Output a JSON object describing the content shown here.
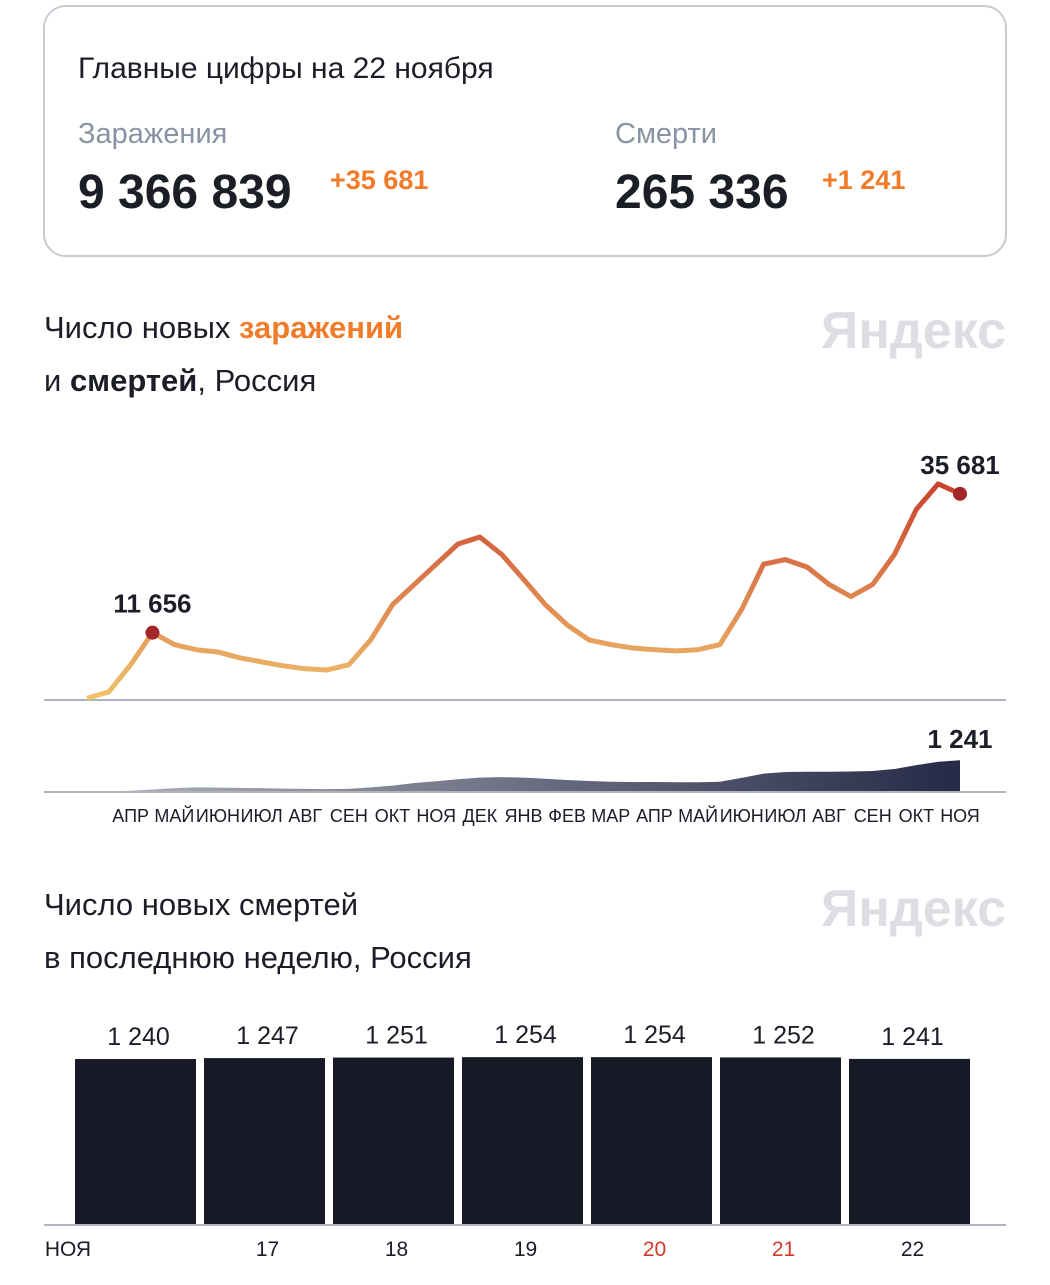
{
  "summary": {
    "title": "Главные цифры на 22 ноября",
    "items": [
      {
        "label": "Заражения",
        "value": "9 366 839",
        "delta": "+35 681"
      },
      {
        "label": "Смерти",
        "value": "265 336",
        "delta": "+1 241"
      }
    ]
  },
  "chart_data": [
    {
      "type": "line",
      "watermark": "Яндекс",
      "title_lines": [
        [
          "Число новых ",
          "заражений"
        ],
        [
          "и ",
          "смертей",
          ", Россия"
        ]
      ],
      "categories": [
        null,
        null,
        "АПР",
        null,
        "МАЙ",
        null,
        "ИЮН",
        null,
        "ИЮЛ",
        null,
        "АВГ",
        null,
        "СЕН",
        null,
        "ОКТ",
        null,
        "НОЯ",
        null,
        "ДЕК",
        null,
        "ЯНВ",
        null,
        "ФЕВ",
        null,
        "МАР",
        null,
        "АПР",
        null,
        "МАЙ",
        null,
        "ИЮН",
        null,
        "ИЮЛ",
        null,
        "АВГ",
        null,
        "СЕН",
        null,
        "ОКТ",
        null,
        "НОЯ"
      ],
      "ylim": [
        0,
        45000
      ],
      "y2lim": [
        0,
        3400
      ],
      "series": [
        {
          "color": [
            "#f0c36e",
            "#c73a2a"
          ],
          "marker_color": "#a3262a",
          "values": [
            300,
            1400,
            6100,
            11656,
            9600,
            8700,
            8300,
            7300,
            6600,
            5900,
            5400,
            5200,
            6100,
            10400,
            16500,
            20000,
            23500,
            27000,
            28200,
            25200,
            20900,
            16500,
            13000,
            10400,
            9600,
            9000,
            8700,
            8500,
            8700,
            9600,
            15700,
            23500,
            24300,
            23000,
            20000,
            17900,
            20000,
            25200,
            33000,
            37400,
            35681
          ],
          "value_labels": [
            null,
            null,
            null,
            "11 656",
            null,
            null,
            null,
            null,
            null,
            null,
            null,
            null,
            null,
            null,
            null,
            null,
            null,
            null,
            null,
            null,
            null,
            null,
            null,
            null,
            null,
            null,
            null,
            null,
            null,
            null,
            null,
            null,
            null,
            null,
            null,
            null,
            null,
            null,
            null,
            null,
            "35 681"
          ]
        },
        {
          "axis": "y2",
          "color": "#262a47",
          "values": [
            5,
            20,
            50,
            100,
            150,
            180,
            170,
            160,
            150,
            130,
            120,
            110,
            120,
            180,
            250,
            350,
            420,
            500,
            560,
            580,
            560,
            520,
            470,
            430,
            400,
            390,
            390,
            380,
            380,
            400,
            550,
            720,
            780,
            790,
            790,
            800,
            820,
            900,
            1050,
            1180,
            1241
          ],
          "value_labels": [
            null,
            null,
            null,
            null,
            null,
            null,
            null,
            null,
            null,
            null,
            null,
            null,
            null,
            null,
            null,
            null,
            null,
            null,
            null,
            null,
            null,
            null,
            null,
            null,
            null,
            null,
            null,
            null,
            null,
            null,
            null,
            null,
            null,
            null,
            null,
            null,
            null,
            null,
            null,
            null,
            "1 241"
          ]
        }
      ]
    },
    {
      "type": "bar",
      "watermark": "Яндекс",
      "title_lines": [
        "Число новых смертей",
        "в последнюю неделю, Россия"
      ],
      "categories": [
        "НОЯ",
        "17",
        "18",
        "19",
        "20",
        "21",
        "22"
      ],
      "category_colors": [
        "#1b1d27",
        "#1b1d27",
        "#1b1d27",
        "#1b1d27",
        "#d0392a",
        "#d0392a",
        "#1b1d27"
      ],
      "values": [
        1240,
        1247,
        1251,
        1254,
        1254,
        1252,
        1241
      ],
      "value_labels": [
        "1 240",
        "1 247",
        "1 251",
        "1 254",
        "1 254",
        "1 252",
        "1 241"
      ],
      "color": "#171a26",
      "ylim": [
        0,
        1300
      ]
    }
  ]
}
